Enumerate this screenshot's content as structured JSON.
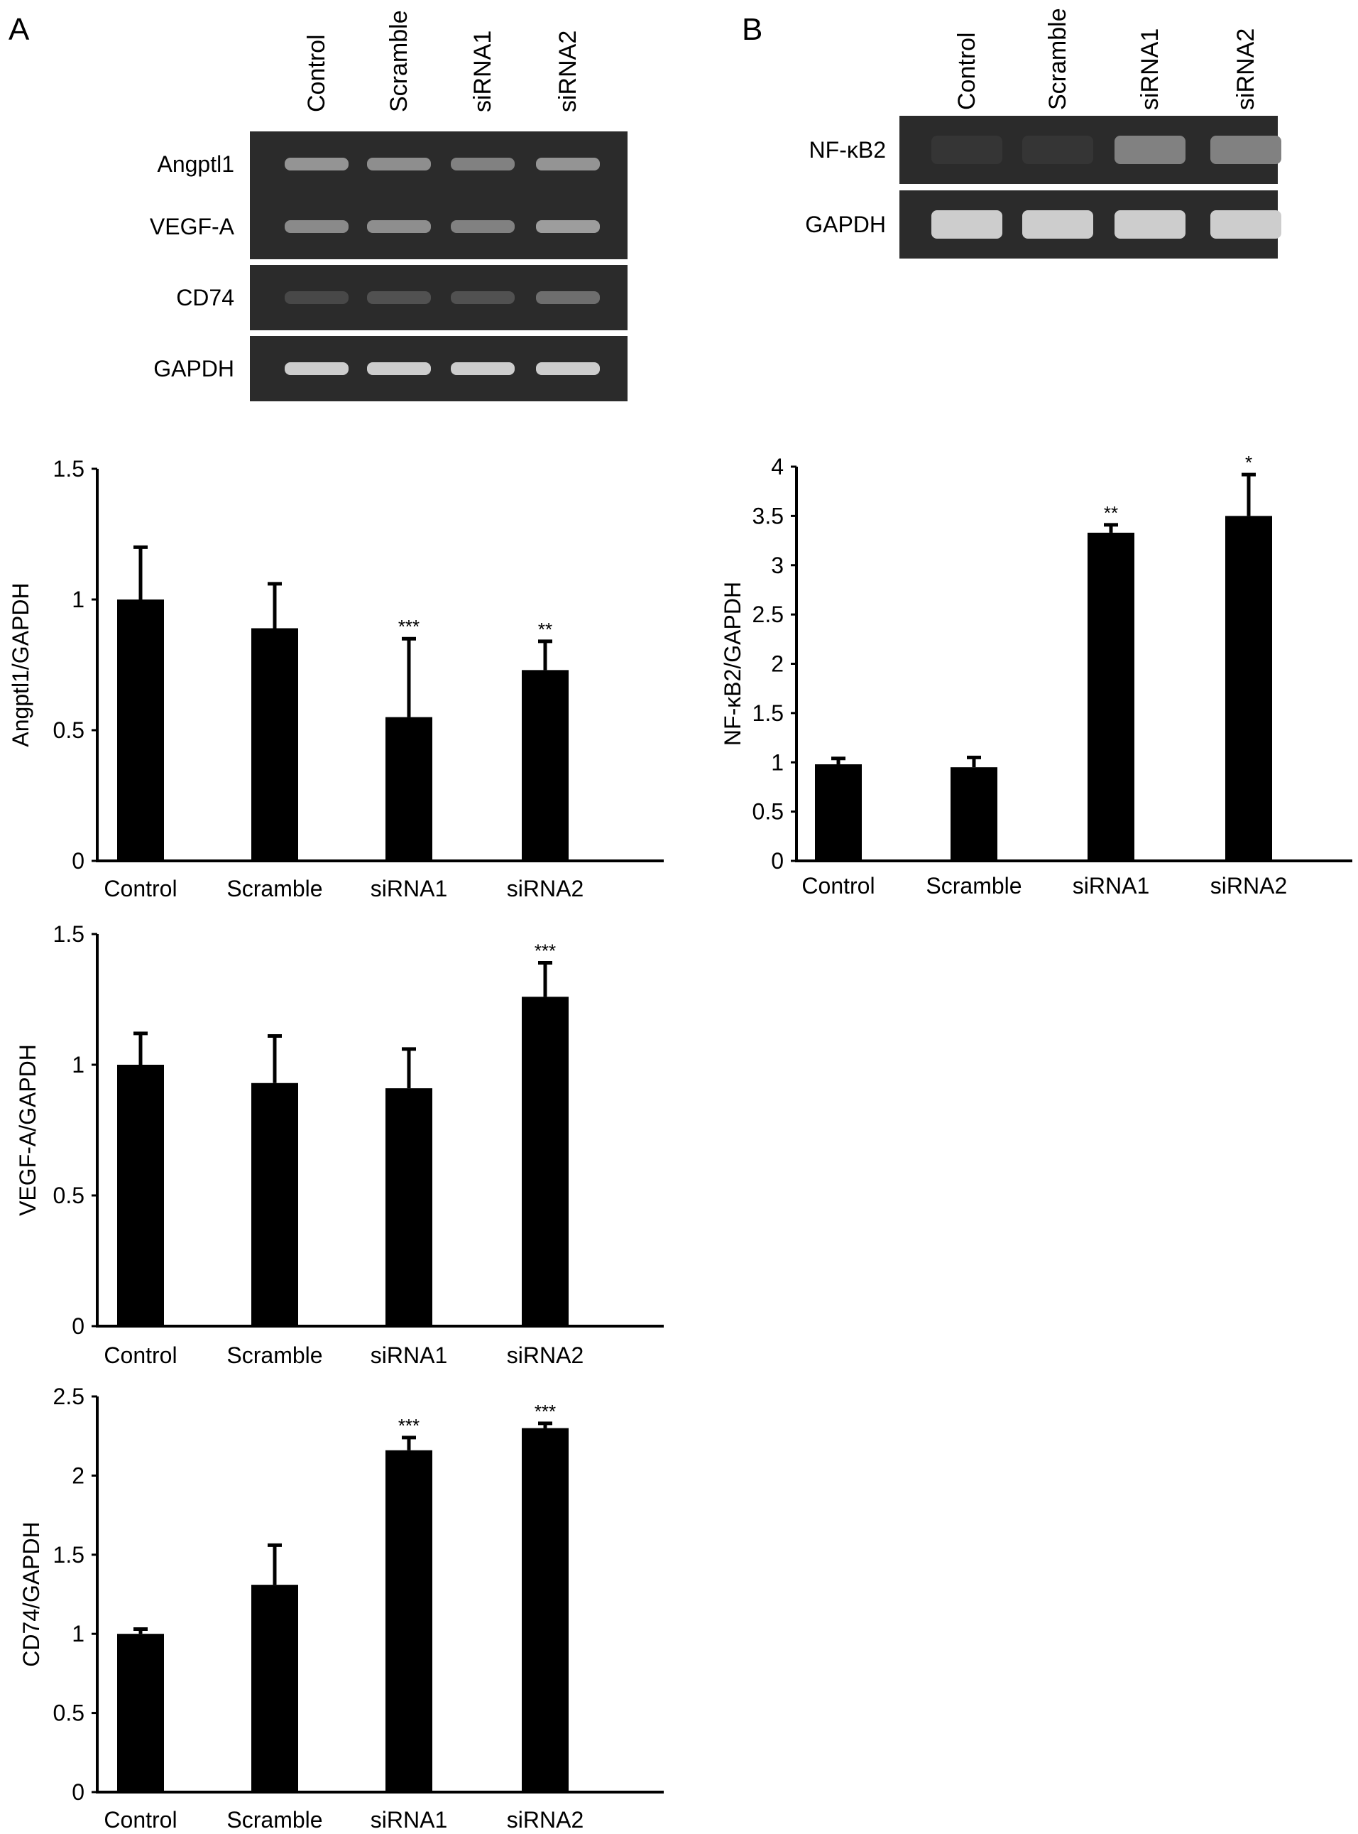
{
  "panels": {
    "A": {
      "letter": "A"
    },
    "B": {
      "letter": "B"
    }
  },
  "blots": [
    {
      "panel": "A",
      "lanes": [
        "Control",
        "Scramble",
        "siRNA1",
        "siRNA2"
      ],
      "rows": [
        {
          "label": "Angptl1",
          "intensity": [
            0.55,
            0.52,
            0.45,
            0.55
          ]
        },
        {
          "label": "VEGF-A",
          "intensity": [
            0.5,
            0.52,
            0.45,
            0.6
          ]
        },
        {
          "label": "CD74",
          "intensity": [
            0.15,
            0.2,
            0.2,
            0.35
          ]
        },
        {
          "label": "GAPDH",
          "intensity": [
            0.85,
            0.85,
            0.85,
            0.85
          ]
        }
      ]
    },
    {
      "panel": "B",
      "lanes": [
        "Control",
        "Scramble",
        "siRNA1",
        "siRNA2"
      ],
      "rows": [
        {
          "label": "NF-κB2",
          "intensity": [
            0.05,
            0.05,
            0.45,
            0.45
          ]
        },
        {
          "label": "GAPDH",
          "intensity": [
            0.85,
            0.85,
            0.85,
            0.85
          ]
        }
      ]
    }
  ],
  "chart_data": [
    {
      "panel": "A",
      "type": "bar",
      "categories": [
        "Control",
        "Scramble",
        "siRNA1",
        "siRNA2"
      ],
      "values": [
        1.0,
        0.89,
        0.55,
        0.73
      ],
      "errors": [
        0.2,
        0.17,
        0.3,
        0.11
      ],
      "significance": [
        "",
        "",
        "***",
        "**"
      ],
      "ylabel": "Angptl1/GAPDH",
      "ylim": [
        0,
        1.5
      ],
      "yticks": [
        0,
        0.5,
        1,
        1.5
      ],
      "ytick_labels": [
        "0",
        "0.5",
        "1",
        "1.5"
      ],
      "color": "#000000"
    },
    {
      "panel": "A",
      "type": "bar",
      "categories": [
        "Control",
        "Scramble",
        "siRNA1",
        "siRNA2"
      ],
      "values": [
        1.0,
        0.93,
        0.91,
        1.26
      ],
      "errors": [
        0.12,
        0.18,
        0.15,
        0.13
      ],
      "significance": [
        "",
        "",
        "",
        "***"
      ],
      "ylabel": "VEGF-A/GAPDH",
      "ylim": [
        0,
        1.5
      ],
      "yticks": [
        0,
        0.5,
        1,
        1.5
      ],
      "ytick_labels": [
        "0",
        "0.5",
        "1",
        "1.5"
      ],
      "color": "#000000"
    },
    {
      "panel": "A",
      "type": "bar",
      "categories": [
        "Control",
        "Scramble",
        "siRNA1",
        "siRNA2"
      ],
      "values": [
        1.0,
        1.31,
        2.16,
        2.3
      ],
      "errors": [
        0.03,
        0.25,
        0.08,
        0.03
      ],
      "significance": [
        "",
        "",
        "***",
        "***"
      ],
      "ylabel": "CD74/GAPDH",
      "ylim": [
        0,
        2.5
      ],
      "yticks": [
        0,
        0.5,
        1,
        1.5,
        2,
        2.5
      ],
      "ytick_labels": [
        "0",
        "0.5",
        "1",
        "1.5",
        "2",
        "2.5"
      ],
      "color": "#000000"
    },
    {
      "panel": "B",
      "type": "bar",
      "categories": [
        "Control",
        "Scramble",
        "siRNA1",
        "siRNA2"
      ],
      "values": [
        0.98,
        0.95,
        3.33,
        3.5
      ],
      "errors": [
        0.06,
        0.1,
        0.08,
        0.42
      ],
      "significance": [
        "",
        "",
        "**",
        "*"
      ],
      "ylabel": "NF-κB2/GAPDH",
      "ylim": [
        0,
        4
      ],
      "yticks": [
        0,
        0.5,
        1,
        1.5,
        2,
        2.5,
        3,
        3.5,
        4
      ],
      "ytick_labels": [
        "0",
        "0.5",
        "1",
        "1.5",
        "2",
        "2.5",
        "3",
        "3.5",
        "4"
      ],
      "color": "#000000"
    }
  ]
}
